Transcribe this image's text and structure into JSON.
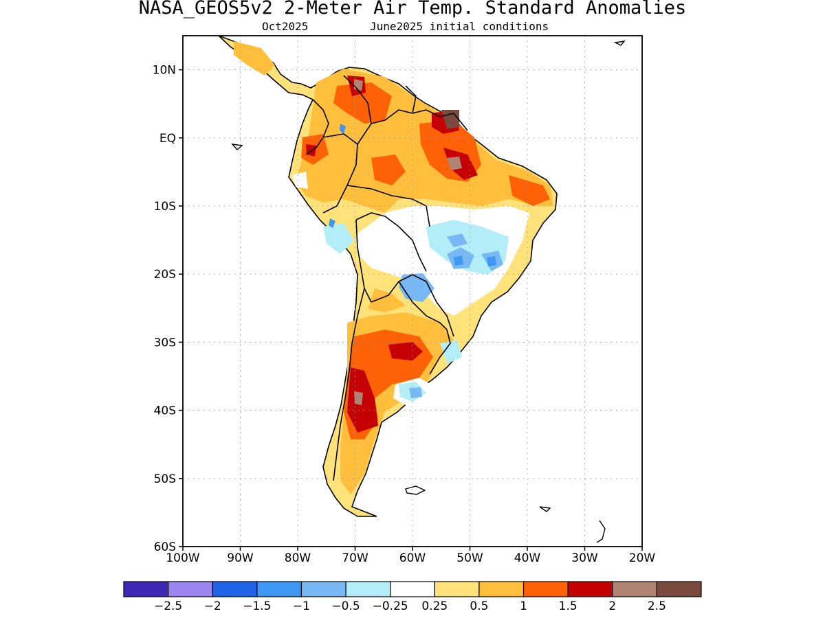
{
  "title": "NASA_GEOS5v2 2-Meter Air Temp. Standard Anomalies",
  "subtitle_left": "Oct2025",
  "subtitle_right": "June2025 initial conditions",
  "map": {
    "lon_range": [
      -100,
      -20
    ],
    "lat_range": [
      -60,
      15
    ],
    "lat_ticks": [
      {
        "value": 10,
        "label": "10N"
      },
      {
        "value": 0,
        "label": "EQ"
      },
      {
        "value": -10,
        "label": "10S"
      },
      {
        "value": -20,
        "label": "20S"
      },
      {
        "value": -30,
        "label": "30S"
      },
      {
        "value": -40,
        "label": "40S"
      },
      {
        "value": -50,
        "label": "50S"
      },
      {
        "value": -60,
        "label": "60S"
      }
    ],
    "lon_ticks": [
      {
        "value": -100,
        "label": "100W"
      },
      {
        "value": -90,
        "label": "90W"
      },
      {
        "value": -80,
        "label": "80W"
      },
      {
        "value": -70,
        "label": "70W"
      },
      {
        "value": -60,
        "label": "60W"
      },
      {
        "value": -50,
        "label": "50W"
      },
      {
        "value": -40,
        "label": "40W"
      },
      {
        "value": -30,
        "label": "30W"
      },
      {
        "value": -20,
        "label": "20W"
      }
    ],
    "grid": true
  },
  "colorbar": {
    "colors": [
      "#3f27b8",
      "#9d85f2",
      "#1f64e8",
      "#3e97f2",
      "#78b9f5",
      "#b3eef8",
      "#ffffff",
      "#ffe27a",
      "#ffbf3c",
      "#ff6106",
      "#c40003",
      "#b08373",
      "#7a4a3e"
    ],
    "labels": [
      "-2.5",
      "-2",
      "-1.5",
      "-1",
      "-0.5",
      "-0.25",
      "0.25",
      "0.5",
      "1",
      "1.5",
      "2",
      "2.5"
    ]
  }
}
